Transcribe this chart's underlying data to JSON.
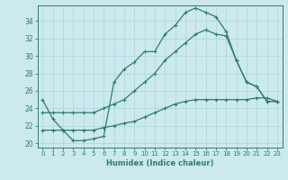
{
  "xlabel": "Humidex (Indice chaleur)",
  "bg_color": "#cce9ee",
  "grid_color": "#b0d8e0",
  "line_color": "#2d7d6e",
  "xlim": [
    -0.5,
    23.5
  ],
  "ylim": [
    19.5,
    35.8
  ],
  "yticks": [
    20,
    22,
    24,
    26,
    28,
    30,
    32,
    34
  ],
  "xticks": [
    0,
    1,
    2,
    3,
    4,
    5,
    6,
    7,
    8,
    9,
    10,
    11,
    12,
    13,
    14,
    15,
    16,
    17,
    18,
    19,
    20,
    21,
    22,
    23
  ],
  "curve1_x": [
    0,
    1,
    2,
    3,
    4,
    5,
    6,
    7,
    8,
    9,
    10,
    11,
    12,
    13,
    14,
    15,
    16,
    17,
    18,
    19,
    20,
    21,
    22,
    23
  ],
  "curve1_y": [
    25.0,
    22.8,
    21.5,
    20.3,
    20.3,
    20.5,
    20.8,
    27.0,
    28.5,
    29.3,
    30.5,
    30.5,
    32.5,
    33.5,
    35.0,
    35.5,
    35.0,
    34.5,
    32.8,
    29.5,
    27.0,
    26.5,
    24.8,
    24.8
  ],
  "curve2_x": [
    0,
    1,
    2,
    3,
    4,
    5,
    6,
    7,
    8,
    9,
    10,
    11,
    12,
    13,
    14,
    15,
    16,
    17,
    18,
    19,
    20,
    21,
    22,
    23
  ],
  "curve2_y": [
    23.5,
    23.5,
    23.5,
    23.5,
    23.5,
    23.5,
    24.0,
    24.5,
    25.0,
    26.0,
    27.0,
    28.0,
    29.5,
    30.5,
    31.5,
    32.5,
    33.0,
    32.5,
    32.3,
    29.5,
    27.0,
    26.5,
    24.8,
    24.8
  ],
  "curve3_x": [
    0,
    1,
    2,
    3,
    4,
    5,
    6,
    7,
    8,
    9,
    10,
    11,
    12,
    13,
    14,
    15,
    16,
    17,
    18,
    19,
    20,
    21,
    22,
    23
  ],
  "curve3_y": [
    21.5,
    21.5,
    21.5,
    21.5,
    21.5,
    21.5,
    21.8,
    22.0,
    22.3,
    22.5,
    23.0,
    23.5,
    24.0,
    24.5,
    24.8,
    25.0,
    25.0,
    25.0,
    25.0,
    25.0,
    25.0,
    25.2,
    25.2,
    24.8
  ]
}
